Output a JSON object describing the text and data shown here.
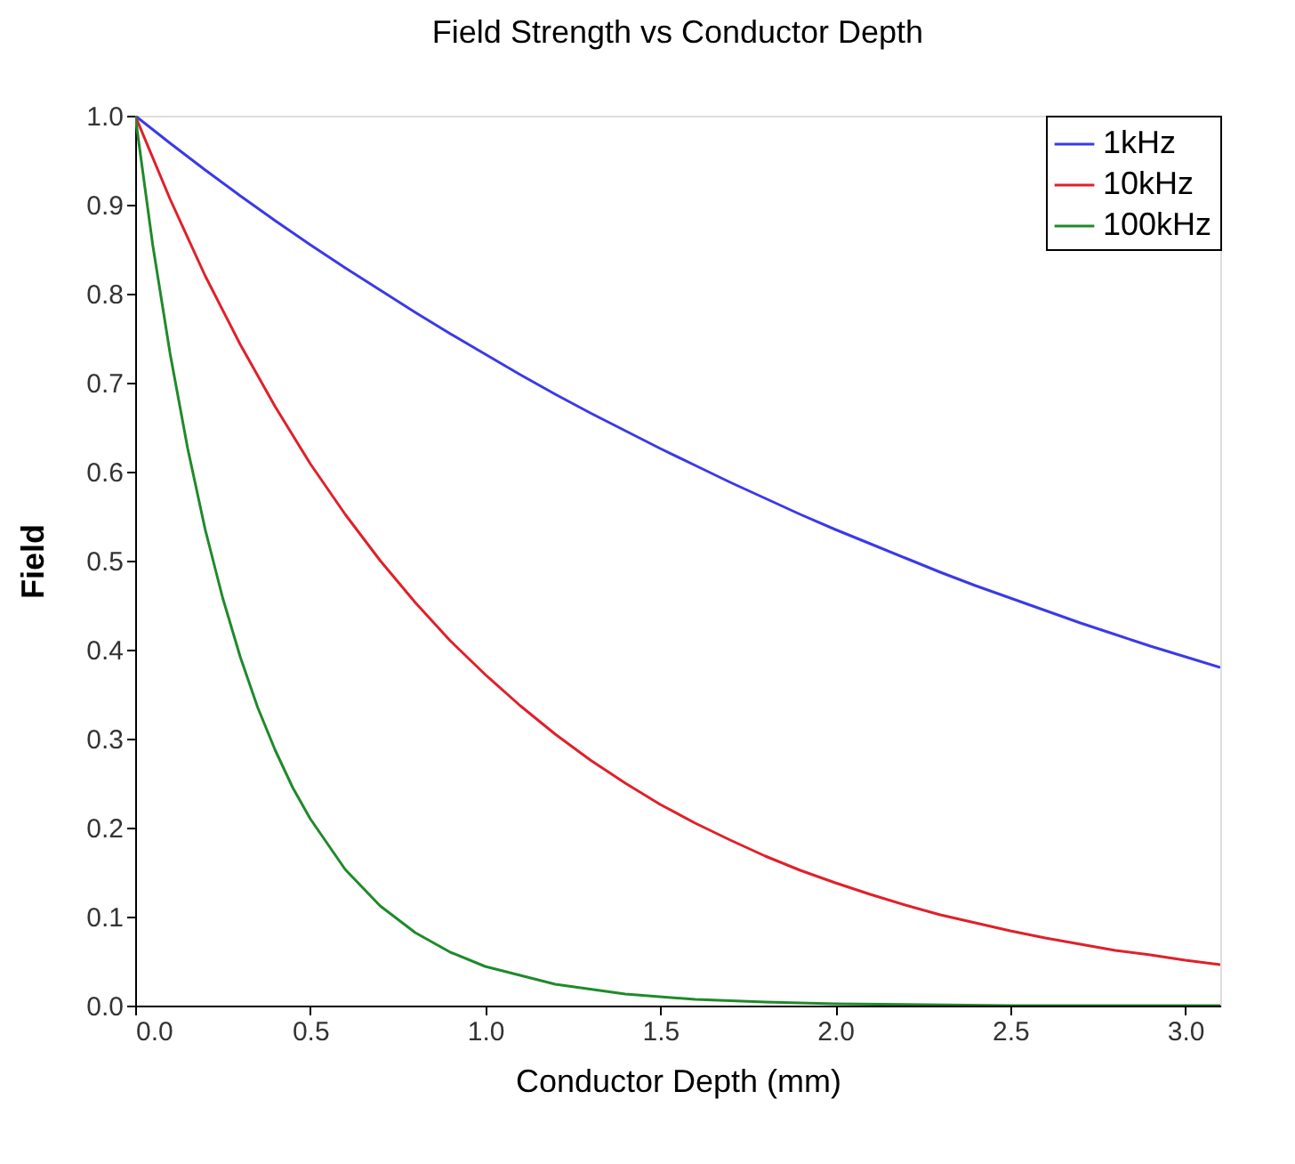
{
  "chart_data": {
    "type": "line",
    "title": "Field Strength vs Conductor Depth",
    "xlabel": "Conductor Depth (mm)",
    "ylabel": "Field",
    "xlim": [
      0,
      3.1
    ],
    "ylim": [
      0,
      1.0
    ],
    "xticks": [
      {
        "value": 0,
        "label": "0.0"
      },
      {
        "value": 0.5,
        "label": "0.5"
      },
      {
        "value": 1,
        "label": "1.0"
      },
      {
        "value": 1.5,
        "label": "1.5"
      },
      {
        "value": 2,
        "label": "2.0"
      },
      {
        "value": 2.5,
        "label": "2.5"
      },
      {
        "value": 3,
        "label": "3.0"
      }
    ],
    "yticks": [
      {
        "value": 0,
        "label": "0.0"
      },
      {
        "value": 0.1,
        "label": "0.1"
      },
      {
        "value": 0.2,
        "label": "0.2"
      },
      {
        "value": 0.3,
        "label": "0.3"
      },
      {
        "value": 0.4,
        "label": "0.4"
      },
      {
        "value": 0.5,
        "label": "0.5"
      },
      {
        "value": 0.6,
        "label": "0.6"
      },
      {
        "value": 0.7,
        "label": "0.7"
      },
      {
        "value": 0.8,
        "label": "0.8"
      },
      {
        "value": 0.9,
        "label": "0.9"
      },
      {
        "value": 1,
        "label": "1.0"
      }
    ],
    "grid": false,
    "legend": "top right",
    "marker": "none",
    "line_style": "solid",
    "series": [
      {
        "name": "1kHz",
        "color": "#3a3ae8",
        "x": [
          0,
          0.1,
          0.2,
          0.3,
          0.4,
          0.5,
          0.6,
          0.7,
          0.8,
          0.9,
          1.0,
          1.1,
          1.2,
          1.3,
          1.4,
          1.5,
          1.6,
          1.7,
          1.8,
          1.9,
          2.0,
          2.1,
          2.2,
          2.3,
          2.4,
          2.5,
          2.6,
          2.7,
          2.8,
          2.9,
          3.0,
          3.1
        ],
        "values": [
          1.0,
          0.969,
          0.939,
          0.91,
          0.882,
          0.855,
          0.829,
          0.804,
          0.779,
          0.755,
          0.732,
          0.709,
          0.687,
          0.666,
          0.646,
          0.626,
          0.607,
          0.588,
          0.57,
          0.552,
          0.535,
          0.519,
          0.503,
          0.487,
          0.472,
          0.458,
          0.444,
          0.43,
          0.417,
          0.404,
          0.392,
          0.38
        ]
      },
      {
        "name": "10kHz",
        "color": "#e0202a",
        "x": [
          0,
          0.1,
          0.2,
          0.3,
          0.4,
          0.5,
          0.6,
          0.7,
          0.8,
          0.9,
          1.0,
          1.1,
          1.2,
          1.3,
          1.4,
          1.5,
          1.6,
          1.7,
          1.8,
          1.9,
          2.0,
          2.1,
          2.2,
          2.3,
          2.4,
          2.5,
          2.6,
          2.7,
          2.8,
          2.9,
          3.0,
          3.1
        ],
        "values": [
          1.0,
          0.906,
          0.82,
          0.743,
          0.673,
          0.609,
          0.552,
          0.5,
          0.453,
          0.41,
          0.372,
          0.337,
          0.305,
          0.276,
          0.25,
          0.226,
          0.205,
          0.186,
          0.168,
          0.152,
          0.138,
          0.125,
          0.113,
          0.102,
          0.093,
          0.084,
          0.076,
          0.069,
          0.062,
          0.057,
          0.051,
          0.046
        ]
      },
      {
        "name": "100kHz",
        "color": "#1f8a2a",
        "x": [
          0,
          0.05,
          0.1,
          0.15,
          0.2,
          0.25,
          0.3,
          0.35,
          0.4,
          0.45,
          0.5,
          0.6,
          0.7,
          0.8,
          0.9,
          1.0,
          1.2,
          1.4,
          1.6,
          1.8,
          2.0,
          2.5,
          3.1
        ],
        "values": [
          1.0,
          0.855,
          0.732,
          0.626,
          0.535,
          0.458,
          0.392,
          0.335,
          0.287,
          0.245,
          0.21,
          0.153,
          0.112,
          0.082,
          0.06,
          0.044,
          0.024,
          0.013,
          0.007,
          0.004,
          0.002,
          0.0,
          0.0
        ]
      }
    ]
  }
}
